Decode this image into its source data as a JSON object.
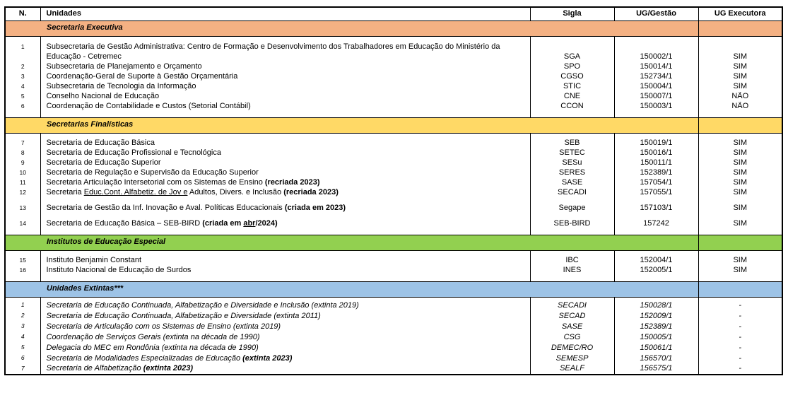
{
  "header": {
    "columns": [
      "N.",
      "Unidades",
      "Sigla",
      "UG/Gestão",
      "UG Executora"
    ]
  },
  "sections": [
    {
      "title": "Secretaria Executiva",
      "band_color": "#F4B183",
      "italic": false,
      "rows": [
        {
          "n": "1",
          "parts": [
            {
              "t": "Subsecretaria de Gestão Administrativa: Centro de Formação e Desenvolvimento dos Trabalhadores em Educação do Ministério da Educação - Cetremec"
            }
          ],
          "sigla": "SGA",
          "ug": "150002/1",
          "exec": "SIM",
          "tall": true
        },
        {
          "n": "2",
          "parts": [
            {
              "t": "Subsecretaria de Planejamento e Orçamento"
            }
          ],
          "sigla": "SPO",
          "ug": "150014/1",
          "exec": "SIM"
        },
        {
          "n": "3",
          "parts": [
            {
              "t": "Coordenação-Geral de Suporte à Gestão Orçamentária"
            }
          ],
          "sigla": "CGSO",
          "ug": "152734/1",
          "exec": "SIM"
        },
        {
          "n": "4",
          "parts": [
            {
              "t": "Subsecretaria de Tecnologia da Informação"
            }
          ],
          "sigla": "STIC",
          "ug": "150004/1",
          "exec": "SIM"
        },
        {
          "n": "5",
          "parts": [
            {
              "t": "Conselho Nacional de Educação"
            }
          ],
          "sigla": "CNE",
          "ug": "150007/1",
          "exec": "NÃO"
        },
        {
          "n": "6",
          "parts": [
            {
              "t": "Coordenação de Contabilidade e Custos (Setorial Contábil)"
            }
          ],
          "sigla": "CCON",
          "ug": "150003/1",
          "exec": "NÃO"
        }
      ]
    },
    {
      "title": "Secretarias Finalísticas",
      "band_color": "#FFD966",
      "italic": false,
      "rows": [
        {
          "n": "7",
          "parts": [
            {
              "t": "Secretaria de Educação Básica"
            }
          ],
          "sigla": "SEB",
          "ug": "150019/1",
          "exec": "SIM"
        },
        {
          "n": "8",
          "parts": [
            {
              "t": "Secretaria de Educação Profissional e Tecnológica"
            }
          ],
          "sigla": "SETEC",
          "ug": "150016/1",
          "exec": "SIM"
        },
        {
          "n": "9",
          "parts": [
            {
              "t": "Secretaria de Educação Superior"
            }
          ],
          "sigla": "SESu",
          "ug": "150011/1",
          "exec": "SIM"
        },
        {
          "n": "10",
          "parts": [
            {
              "t": "Secretaria de Regulação e Supervisão da Educação Superior"
            }
          ],
          "sigla": "SERES",
          "ug": "152389/1",
          "exec": "SIM"
        },
        {
          "n": "11",
          "parts": [
            {
              "t": "Secretaria Articulação Intersetorial com os Sistemas de Ensino "
            },
            {
              "t": "(recriada 2023)",
              "b": true
            }
          ],
          "sigla": "SASE",
          "ug": "157054/1",
          "exec": "SIM"
        },
        {
          "n": "12",
          "parts": [
            {
              "t": "Secretaria "
            },
            {
              "t": "Educ.Cont. Alfabetiz. de Jov e",
              "u": true
            },
            {
              "t": " Adultos, Divers. e Inclusão "
            },
            {
              "t": "(recriada 2023)",
              "b": true
            }
          ],
          "sigla": "SECADI",
          "ug": "157055/1",
          "exec": "SIM"
        },
        {
          "n": "13",
          "parts": [
            {
              "t": "Secretaria de Gestão da Inf. Inovação e Aval. Políticas Educacionais "
            },
            {
              "t": "(criada em 2023)",
              "b": true
            }
          ],
          "sigla": "Segape",
          "ug": "157103/1",
          "exec": "SIM",
          "gap_before": true
        },
        {
          "n": "14",
          "parts": [
            {
              "t": "Secretaria de Educação Básica – SEB-BIRD "
            },
            {
              "t": "(criada em ",
              "b": true
            },
            {
              "t": "abr",
              "b": true,
              "u": true
            },
            {
              "t": "/2024)",
              "b": true
            }
          ],
          "sigla": "SEB-BIRD",
          "ug": "157242",
          "exec": "SIM",
          "gap_before": true
        }
      ]
    },
    {
      "title": "Institutos de Educação Especial",
      "band_color": "#92D050",
      "italic": false,
      "rows": [
        {
          "n": "15",
          "parts": [
            {
              "t": "Instituto Benjamin Constant"
            }
          ],
          "sigla": "IBC",
          "ug": "152004/1",
          "exec": "SIM"
        },
        {
          "n": "16",
          "parts": [
            {
              "t": "Instituto Nacional de Educação de Surdos"
            }
          ],
          "sigla": "INES",
          "ug": "152005/1",
          "exec": "SIM"
        }
      ]
    },
    {
      "title": "Unidades Extintas***",
      "band_color": "#9DC3E6",
      "italic": true,
      "rows": [
        {
          "n": "1",
          "parts": [
            {
              "t": "Secretaria de Educação Continuada, Alfabetização e Diversidade e Inclusão (extinta 2019)"
            }
          ],
          "sigla": "SECADI",
          "ug": "150028/1",
          "exec": "-"
        },
        {
          "n": "2",
          "parts": [
            {
              "t": "Secretaria de Educação Continuada, Alfabetização e Diversidade (extinta 2011)"
            }
          ],
          "sigla": "SECAD",
          "ug": "152009/1",
          "exec": "-"
        },
        {
          "n": "3",
          "parts": [
            {
              "t": "Secretaria de Articulação com os Sistemas de Ensino (extinta 2019)"
            }
          ],
          "sigla": "SASE",
          "ug": "152389/1",
          "exec": "-"
        },
        {
          "n": "4",
          "parts": [
            {
              "t": "Coordenação de Serviços Gerais (extinta na década de 1990)"
            }
          ],
          "sigla": "CSG",
          "ug": "150005/1",
          "exec": "-"
        },
        {
          "n": "5",
          "parts": [
            {
              "t": "Delegacia do MEC em Rondônia (extinta na década de 1990)"
            }
          ],
          "sigla": "DEMEC/RO",
          "ug": "150061/1",
          "exec": "-"
        },
        {
          "n": "6",
          "parts": [
            {
              "t": "Secretaria de Modalidades Especializadas de Educação "
            },
            {
              "t": "(extinta 2023)",
              "b": true
            }
          ],
          "sigla": "SEMESP",
          "ug": "156570/1",
          "exec": "-"
        },
        {
          "n": "7",
          "parts": [
            {
              "t": "Secretaria de Alfabetização "
            },
            {
              "t": "(extinta 2023)",
              "b": true
            }
          ],
          "sigla": "SEALF",
          "ug": "156575/1",
          "exec": "-"
        }
      ]
    }
  ]
}
